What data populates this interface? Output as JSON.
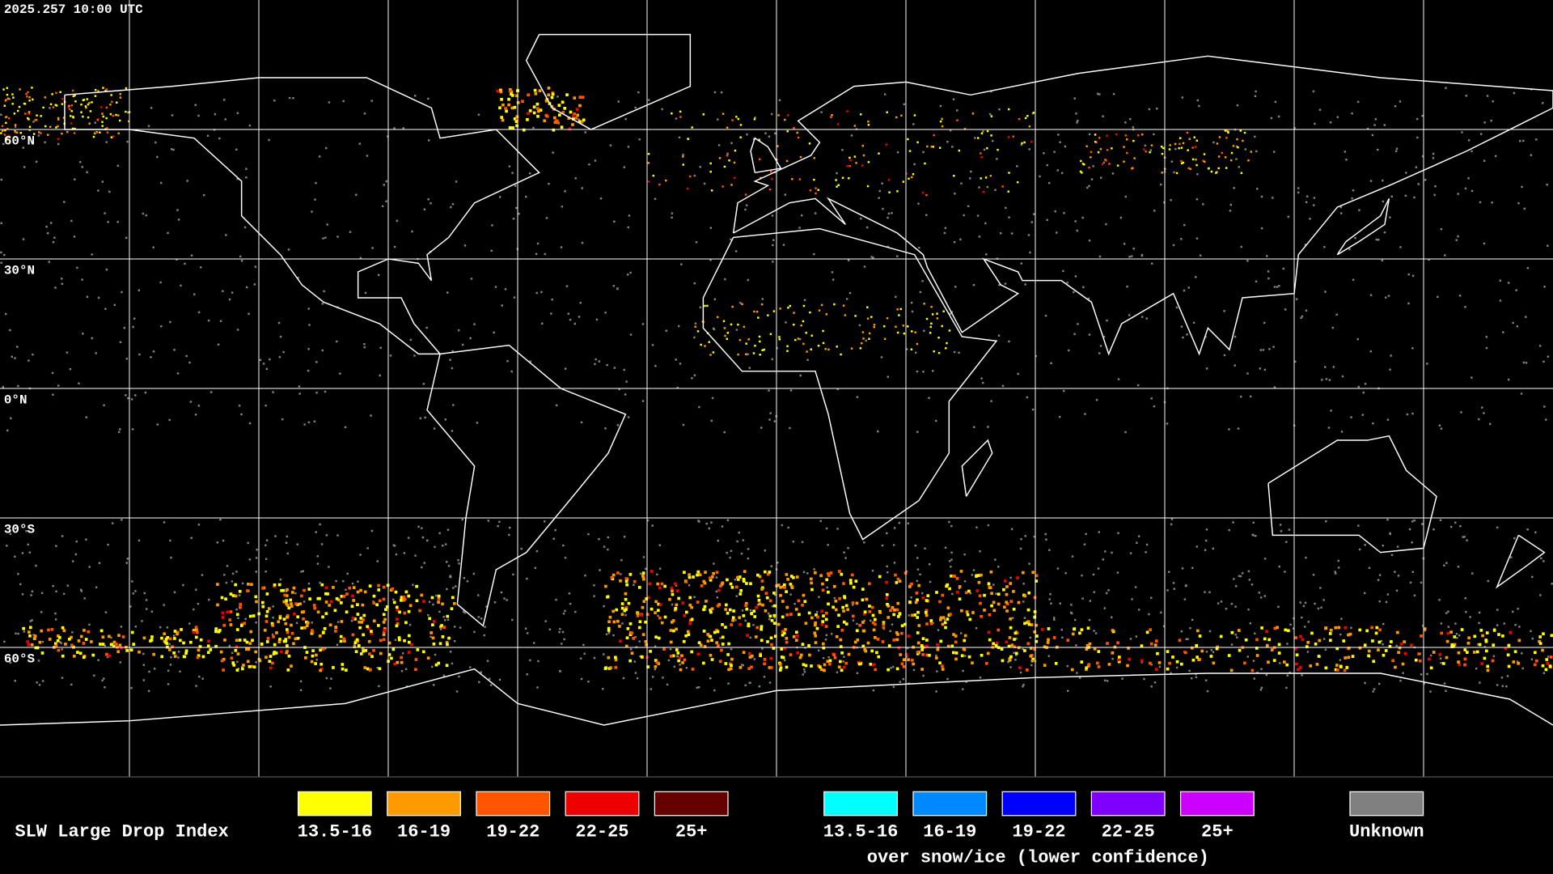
{
  "timestamp": "2025.257 10:00 UTC",
  "latitude_labels": [
    "60°N",
    "30°N",
    "0°N",
    "30°S",
    "60°S"
  ],
  "legend": {
    "title": "SLW Large Drop Index",
    "items": [
      {
        "label": "13.5-16",
        "color": "#ffff00"
      },
      {
        "label": "16-19",
        "color": "#ff9900"
      },
      {
        "label": "19-22",
        "color": "#ff5500"
      },
      {
        "label": "22-25",
        "color": "#ee0000"
      },
      {
        "label": "25+",
        "color": "#660000"
      }
    ],
    "snow_ice_items": [
      {
        "label": "13.5-16",
        "color": "#00ffff"
      },
      {
        "label": "16-19",
        "color": "#0088ff"
      },
      {
        "label": "19-22",
        "color": "#0000ff"
      },
      {
        "label": "22-25",
        "color": "#8000ff"
      },
      {
        "label": "25+",
        "color": "#cc00ff"
      }
    ],
    "snow_ice_caption": "over snow/ice (lower confidence)",
    "unknown": {
      "label": "Unknown",
      "color": "#808080"
    }
  }
}
